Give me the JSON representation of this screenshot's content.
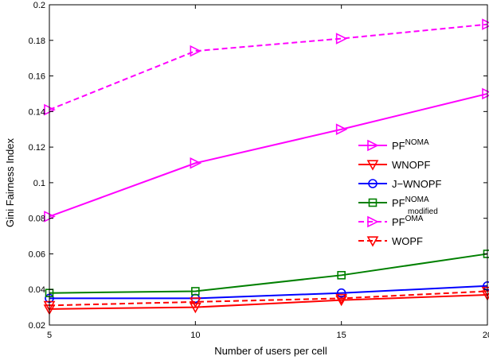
{
  "chart_data": {
    "type": "line",
    "xlabel": "Number of users per cell",
    "ylabel": "Gini Fairness Index",
    "xlim": [
      5,
      20
    ],
    "ylim": [
      0.02,
      0.2
    ],
    "x": [
      5,
      10,
      15,
      20
    ],
    "xticks": [
      "5",
      "10",
      "15",
      "20"
    ],
    "yticks": [
      "0.02",
      "0.04",
      "0.06",
      "0.08",
      "0.1",
      "0.12",
      "0.14",
      "0.16",
      "0.18",
      "0.2"
    ],
    "grid": false,
    "legend_position": "right",
    "series": [
      {
        "name": "PF",
        "name_sup": "NOMA",
        "name_sub": "",
        "color": "#ff00ff",
        "dash": "solid",
        "marker": "triangle-right",
        "values": [
          0.081,
          0.111,
          0.13,
          0.15
        ]
      },
      {
        "name": "WNOPF",
        "name_sup": "",
        "name_sub": "",
        "color": "#ff0000",
        "dash": "solid",
        "marker": "triangle-down",
        "values": [
          0.029,
          0.03,
          0.034,
          0.037
        ]
      },
      {
        "name": "J−WNOPF",
        "name_sup": "",
        "name_sub": "",
        "color": "#0000ff",
        "dash": "solid",
        "marker": "circle",
        "values": [
          0.035,
          0.035,
          0.038,
          0.042
        ]
      },
      {
        "name": "PF",
        "name_sup": "NOMA",
        "name_sub": "modified",
        "color": "#008000",
        "dash": "solid",
        "marker": "square",
        "values": [
          0.038,
          0.039,
          0.048,
          0.06
        ]
      },
      {
        "name": "PF",
        "name_sup": "OMA",
        "name_sub": "",
        "color": "#ff00ff",
        "dash": "dashed",
        "marker": "triangle-right",
        "values": [
          0.141,
          0.174,
          0.181,
          0.189
        ]
      },
      {
        "name": "WOPF",
        "name_sup": "",
        "name_sub": "",
        "color": "#ff0000",
        "dash": "dashed",
        "marker": "triangle-down",
        "values": [
          0.031,
          0.033,
          0.035,
          0.039
        ]
      }
    ]
  }
}
